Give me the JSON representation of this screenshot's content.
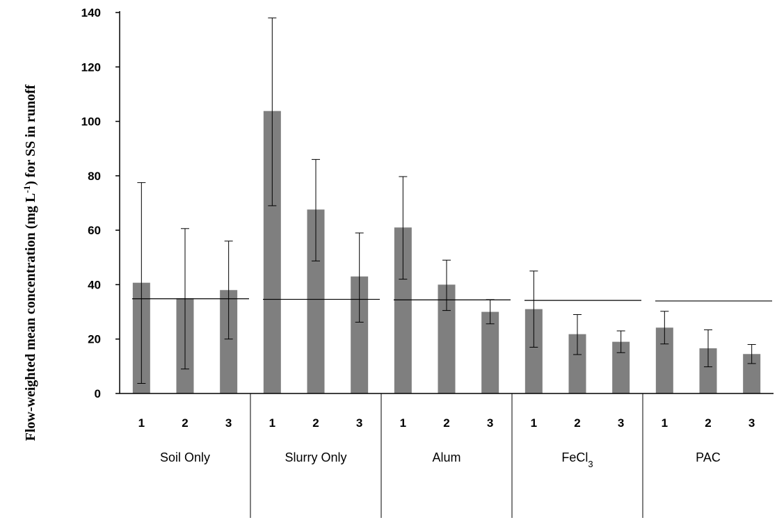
{
  "chart_data": {
    "type": "bar",
    "title": "",
    "xlabel": "",
    "ylabel": {
      "prefix": "Flow-weighted mean concentration (mg L",
      "sup": "-1",
      "suffix": ") for SS in runoff"
    },
    "ylim": [
      0,
      140
    ],
    "yticks": [
      "0",
      "20",
      "40",
      "60",
      "80",
      "100",
      "120",
      "140"
    ],
    "grid": false,
    "legend": "none",
    "bar_color": "#7f7f7f",
    "groups": [
      {
        "label": "Soil Only",
        "sub": "",
        "categories": [
          "1",
          "2",
          "3"
        ],
        "values": [
          40.7,
          35.0,
          38.0
        ],
        "err_low": [
          3.7,
          9.0,
          20.0
        ],
        "err_high": [
          77.5,
          60.6,
          56.0
        ],
        "ref_line": 34.8
      },
      {
        "label": "Slurry Only",
        "sub": "",
        "categories": [
          "1",
          "2",
          "3"
        ],
        "values": [
          103.8,
          67.6,
          43.0
        ],
        "err_low": [
          69.0,
          48.7,
          26.2
        ],
        "err_high": [
          138.0,
          86.0,
          59.0
        ],
        "ref_line": 34.6
      },
      {
        "label": "Alum",
        "sub": "",
        "categories": [
          "1",
          "2",
          "3"
        ],
        "values": [
          61.0,
          40.0,
          30.0
        ],
        "err_low": [
          42.0,
          30.5,
          25.6
        ],
        "err_high": [
          79.7,
          49.0,
          34.5
        ],
        "ref_line": 34.4
      },
      {
        "label": "FeCl",
        "sub": "3",
        "categories": [
          "1",
          "2",
          "3"
        ],
        "values": [
          31.0,
          21.8,
          19.0
        ],
        "err_low": [
          17.0,
          14.3,
          15.0
        ],
        "err_high": [
          45.0,
          29.0,
          23.0
        ],
        "ref_line": 34.2
      },
      {
        "label": "PAC",
        "sub": "",
        "categories": [
          "1",
          "2",
          "3"
        ],
        "values": [
          24.2,
          16.6,
          14.5
        ],
        "err_low": [
          18.2,
          9.8,
          11.0
        ],
        "err_high": [
          30.2,
          23.4,
          18.0
        ],
        "ref_line": 34.0
      }
    ]
  }
}
